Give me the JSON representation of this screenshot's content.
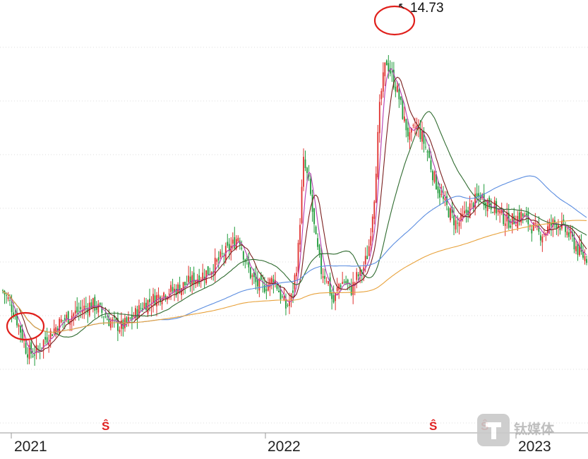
{
  "chart_data": {
    "type": "candlestick",
    "title": "",
    "xlabel": "",
    "ylabel": "",
    "x_tick_labels": [
      "2021",
      "2022",
      "2023"
    ],
    "annotations": {
      "peak_label": "14.73",
      "signal_marker": "Ŝ",
      "circles": [
        {
          "label": "low",
          "year": "2021"
        },
        {
          "label": "high",
          "value": 14.73
        }
      ]
    },
    "series": [
      {
        "name": "",
        "role": "price",
        "color_up": "#e0302e",
        "color_down": "#1f9a3a",
        "values": [
          6.6,
          6.3,
          5.9,
          5.4,
          4.8,
          4.7,
          4.8,
          5.1,
          5.3,
          5.5,
          5.7,
          5.8,
          5.9,
          6.0,
          6.1,
          6.2,
          6.1,
          5.9,
          5.7,
          5.6,
          5.5,
          5.6,
          5.8,
          6.0,
          6.2,
          6.3,
          6.4,
          6.5,
          6.6,
          6.6,
          6.7,
          6.8,
          6.9,
          7.0,
          7.1,
          7.2,
          7.4,
          7.6,
          7.8,
          8.0,
          8.3,
          7.6,
          7.1,
          6.8,
          6.7,
          6.8,
          7.0,
          6.5,
          6.1,
          6.4,
          7.6,
          10.5,
          9.8,
          8.2,
          7.2,
          7.0,
          6.2,
          6.8,
          6.9,
          6.6,
          7.0,
          7.2,
          7.8,
          9.5,
          12.4,
          13.6,
          13.1,
          12.6,
          11.8,
          11.2,
          11.6,
          11.3,
          10.8,
          10.1,
          9.6,
          9.2,
          8.9,
          8.6,
          8.8,
          9.1,
          9.3,
          9.5,
          9.3,
          9.2,
          9.0,
          8.8,
          8.7,
          8.8,
          8.9,
          8.7,
          8.5,
          8.3,
          8.4,
          8.6,
          8.7,
          8.5,
          8.3,
          8.0,
          7.7,
          7.6
        ]
      },
      {
        "name": "",
        "role": "ma-short",
        "color": "#b43cb0",
        "values": []
      },
      {
        "name": "",
        "role": "ma-mid",
        "color": "#7a1f1f",
        "values": []
      },
      {
        "name": "",
        "role": "ma-60",
        "color": "#2f6b2f",
        "values": []
      },
      {
        "name": "",
        "role": "ma-120",
        "color": "#5b8de0",
        "values": []
      },
      {
        "name": "",
        "role": "ma-250",
        "color": "#e8a23c",
        "values": []
      }
    ],
    "ylim": [
      3.0,
      15.2
    ],
    "grid": "horizontal-dashed"
  },
  "watermark": {
    "text": "钛媒体",
    "icon": "tmt-logo-icon"
  }
}
